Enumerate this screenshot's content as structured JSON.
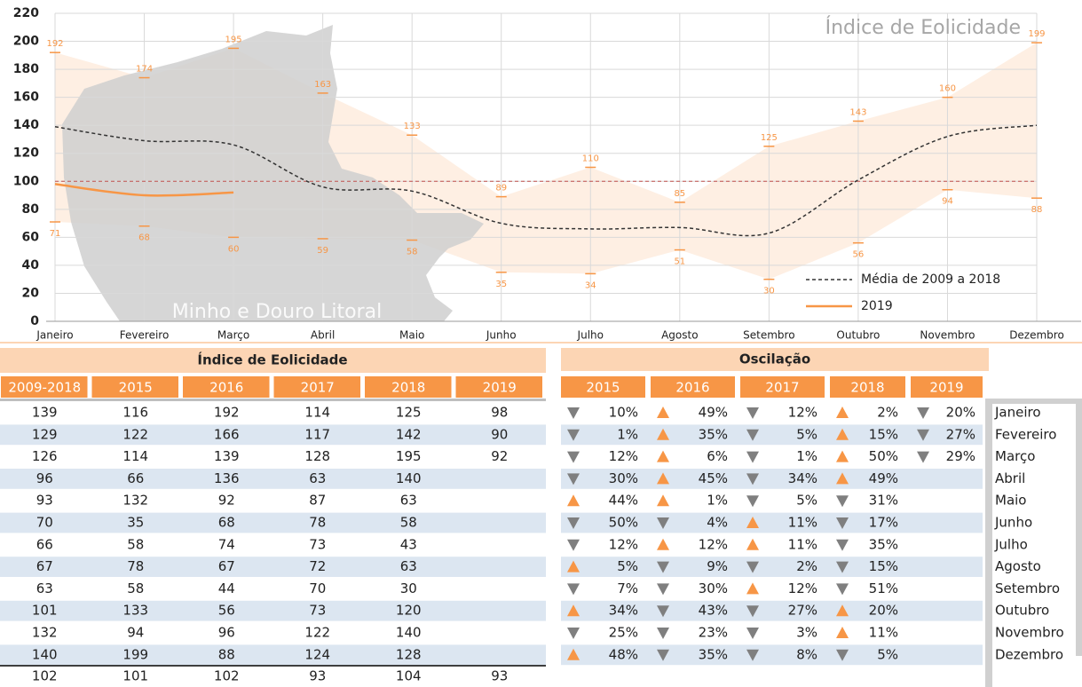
{
  "chart_data": {
    "type": "line",
    "title": "Índice de Eolicidade",
    "annotation": "Minho e Douro Litoral",
    "categories": [
      "Janeiro",
      "Fevereiro",
      "Março",
      "Abril",
      "Maio",
      "Junho",
      "Julho",
      "Agosto",
      "Setembro",
      "Outubro",
      "Novembro",
      "Dezembro"
    ],
    "ylim": [
      0,
      220
    ],
    "yticks": [
      0,
      20,
      40,
      60,
      80,
      100,
      120,
      140,
      160,
      180,
      200,
      220
    ],
    "grid": true,
    "legend": "lower right",
    "reference_line": 100,
    "reference_color": "#c0504d",
    "band": {
      "color": "#fde9d9",
      "label_color": "#f79646",
      "max": [
        192,
        174,
        195,
        163,
        133,
        89,
        110,
        85,
        125,
        143,
        160,
        199
      ],
      "min": [
        71,
        68,
        60,
        59,
        58,
        35,
        34,
        51,
        30,
        56,
        94,
        88
      ]
    },
    "series": [
      {
        "name": "Média de 2009 a 2018",
        "color": "#333333",
        "dashed": true,
        "values": [
          139,
          129,
          126,
          96,
          93,
          70,
          66,
          67,
          63,
          101,
          132,
          140
        ]
      },
      {
        "name": "2019",
        "color": "#f79646",
        "dashed": false,
        "values": [
          98,
          90,
          92,
          null,
          null,
          null,
          null,
          null,
          null,
          null,
          null,
          null
        ]
      }
    ]
  },
  "eolicidade_table": {
    "title": "Índice de Eolicidade",
    "columns": [
      "2009-2018",
      "2015",
      "2016",
      "2017",
      "2018",
      "2019"
    ],
    "rows": [
      [
        139,
        116,
        192,
        114,
        125,
        98
      ],
      [
        129,
        122,
        166,
        117,
        142,
        90
      ],
      [
        126,
        114,
        139,
        128,
        195,
        92
      ],
      [
        96,
        66,
        136,
        63,
        140,
        null
      ],
      [
        93,
        132,
        92,
        87,
        63,
        null
      ],
      [
        70,
        35,
        68,
        78,
        58,
        null
      ],
      [
        66,
        58,
        74,
        73,
        43,
        null
      ],
      [
        67,
        78,
        67,
        72,
        63,
        null
      ],
      [
        63,
        58,
        44,
        70,
        30,
        null
      ],
      [
        101,
        133,
        56,
        73,
        120,
        null
      ],
      [
        132,
        94,
        96,
        122,
        140,
        null
      ],
      [
        140,
        199,
        88,
        124,
        128,
        null
      ]
    ],
    "totals": [
      102,
      101,
      102,
      93,
      104,
      93
    ]
  },
  "oscilacao_table": {
    "title": "Oscilação",
    "columns": [
      "2015",
      "2016",
      "2017",
      "2018",
      "2019"
    ],
    "months": [
      "Janeiro",
      "Fevereiro",
      "Março",
      "Abril",
      "Maio",
      "Junho",
      "Julho",
      "Agosto",
      "Setembro",
      "Outubro",
      "Novembro",
      "Dezembro"
    ],
    "rows": [
      [
        {
          "dir": "down",
          "text": "10%"
        },
        {
          "dir": "up",
          "text": "49%"
        },
        {
          "dir": "down",
          "text": "12%"
        },
        {
          "dir": "up",
          "text": "2%"
        },
        {
          "dir": "down",
          "text": "20%"
        }
      ],
      [
        {
          "dir": "down",
          "text": "1%"
        },
        {
          "dir": "up",
          "text": "35%"
        },
        {
          "dir": "down",
          "text": "5%"
        },
        {
          "dir": "up",
          "text": "15%"
        },
        {
          "dir": "down",
          "text": "27%"
        }
      ],
      [
        {
          "dir": "down",
          "text": "12%"
        },
        {
          "dir": "up",
          "text": "6%"
        },
        {
          "dir": "down",
          "text": "1%"
        },
        {
          "dir": "up",
          "text": "50%"
        },
        {
          "dir": "down",
          "text": "29%"
        }
      ],
      [
        {
          "dir": "down",
          "text": "30%"
        },
        {
          "dir": "up",
          "text": "45%"
        },
        {
          "dir": "down",
          "text": "34%"
        },
        {
          "dir": "up",
          "text": "49%"
        },
        null
      ],
      [
        {
          "dir": "up",
          "text": "44%"
        },
        {
          "dir": "up",
          "text": "1%"
        },
        {
          "dir": "down",
          "text": "5%"
        },
        {
          "dir": "down",
          "text": "31%"
        },
        null
      ],
      [
        {
          "dir": "down",
          "text": "50%"
        },
        {
          "dir": "down",
          "text": "4%"
        },
        {
          "dir": "up",
          "text": "11%"
        },
        {
          "dir": "down",
          "text": "17%"
        },
        null
      ],
      [
        {
          "dir": "down",
          "text": "12%"
        },
        {
          "dir": "up",
          "text": "12%"
        },
        {
          "dir": "up",
          "text": "11%"
        },
        {
          "dir": "down",
          "text": "35%"
        },
        null
      ],
      [
        {
          "dir": "up",
          "text": "5%"
        },
        {
          "dir": "down",
          "text": "9%"
        },
        {
          "dir": "down",
          "text": "2%"
        },
        {
          "dir": "down",
          "text": "15%"
        },
        null
      ],
      [
        {
          "dir": "down",
          "text": "7%"
        },
        {
          "dir": "down",
          "text": "30%"
        },
        {
          "dir": "up",
          "text": "12%"
        },
        {
          "dir": "down",
          "text": "51%"
        },
        null
      ],
      [
        {
          "dir": "up",
          "text": "34%"
        },
        {
          "dir": "down",
          "text": "43%"
        },
        {
          "dir": "down",
          "text": "27%"
        },
        {
          "dir": "up",
          "text": "20%"
        },
        null
      ],
      [
        {
          "dir": "down",
          "text": "25%"
        },
        {
          "dir": "down",
          "text": "23%"
        },
        {
          "dir": "down",
          "text": "3%"
        },
        {
          "dir": "up",
          "text": "11%"
        },
        null
      ],
      [
        {
          "dir": "up",
          "text": "48%"
        },
        {
          "dir": "down",
          "text": "35%"
        },
        {
          "dir": "down",
          "text": "8%"
        },
        {
          "dir": "down",
          "text": "5%"
        },
        null
      ]
    ]
  }
}
